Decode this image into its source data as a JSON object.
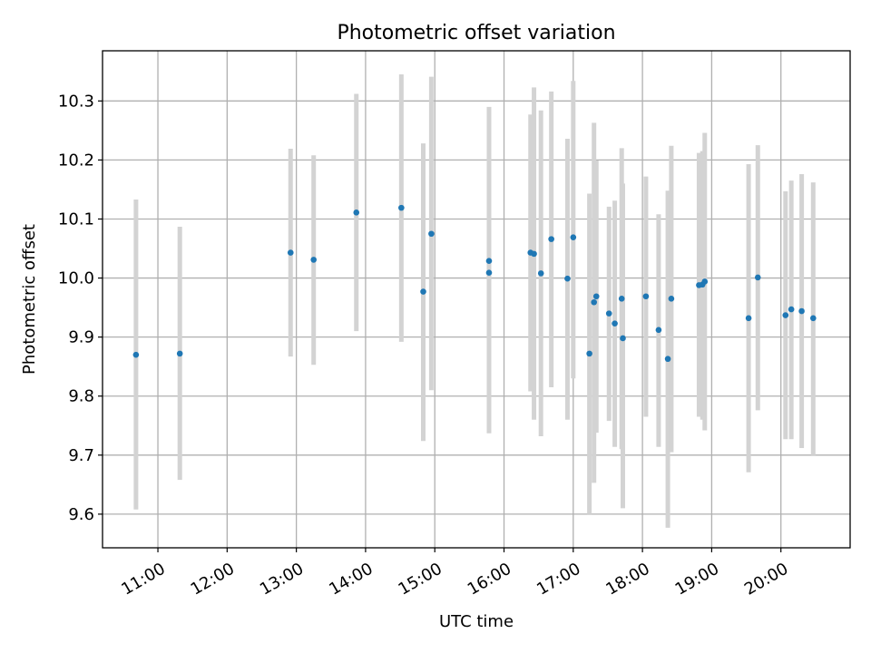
{
  "chart_data": {
    "type": "scatter",
    "title": "Photometric offset variation",
    "xlabel": "UTC time",
    "ylabel": "Photometric offset",
    "x_unit": "UTC time (HH:MM)",
    "xlim": [
      "10:12",
      "21:00"
    ],
    "ylim": [
      9.543,
      10.385
    ],
    "xticks": [
      "11:00",
      "12:00",
      "13:00",
      "14:00",
      "15:00",
      "16:00",
      "17:00",
      "18:00",
      "19:00",
      "20:00"
    ],
    "yticks": [
      9.6,
      9.7,
      9.8,
      9.9,
      10.0,
      10.1,
      10.2,
      10.3
    ],
    "grid": true,
    "marker_color": "#1f77b4",
    "errorbar_color": "#d3d3d3",
    "points": [
      {
        "x": "10:41",
        "y": 9.87,
        "lo": 9.608,
        "hi": 10.133
      },
      {
        "x": "11:19",
        "y": 9.872,
        "lo": 9.658,
        "hi": 10.087
      },
      {
        "x": "12:55",
        "y": 10.043,
        "lo": 9.867,
        "hi": 10.219
      },
      {
        "x": "13:15",
        "y": 10.031,
        "lo": 9.853,
        "hi": 10.208
      },
      {
        "x": "13:52",
        "y": 10.111,
        "lo": 9.91,
        "hi": 10.312
      },
      {
        "x": "14:31",
        "y": 10.119,
        "lo": 9.892,
        "hi": 10.345
      },
      {
        "x": "14:50",
        "y": 9.977,
        "lo": 9.724,
        "hi": 10.228
      },
      {
        "x": "14:57",
        "y": 10.075,
        "lo": 9.81,
        "hi": 10.341
      },
      {
        "x": "15:47",
        "y": 10.029,
        "lo": 9.767,
        "hi": 10.29
      },
      {
        "x": "15:47",
        "y": 10.009,
        "lo": 9.737,
        "hi": 10.28
      },
      {
        "x": "16:23",
        "y": 10.043,
        "lo": 9.808,
        "hi": 10.277
      },
      {
        "x": "16:26",
        "y": 10.041,
        "lo": 9.76,
        "hi": 10.323
      },
      {
        "x": "16:32",
        "y": 10.008,
        "lo": 9.732,
        "hi": 10.284
      },
      {
        "x": "16:41",
        "y": 10.066,
        "lo": 9.815,
        "hi": 10.316
      },
      {
        "x": "16:55",
        "y": 9.999,
        "lo": 9.76,
        "hi": 10.236
      },
      {
        "x": "17:00",
        "y": 10.069,
        "lo": 9.83,
        "hi": 10.334
      },
      {
        "x": "17:14",
        "y": 9.872,
        "lo": 9.6,
        "hi": 10.143
      },
      {
        "x": "17:18",
        "y": 9.959,
        "lo": 9.653,
        "hi": 10.263
      },
      {
        "x": "17:20",
        "y": 9.969,
        "lo": 9.738,
        "hi": 10.199
      },
      {
        "x": "17:31",
        "y": 9.94,
        "lo": 9.758,
        "hi": 10.121
      },
      {
        "x": "17:36",
        "y": 9.923,
        "lo": 9.714,
        "hi": 10.131
      },
      {
        "x": "17:42",
        "y": 9.965,
        "lo": 9.71,
        "hi": 10.22
      },
      {
        "x": "17:43",
        "y": 9.898,
        "lo": 9.61,
        "hi": 10.16
      },
      {
        "x": "18:03",
        "y": 9.969,
        "lo": 9.765,
        "hi": 10.172
      },
      {
        "x": "18:14",
        "y": 9.912,
        "lo": 9.714,
        "hi": 10.108
      },
      {
        "x": "18:22",
        "y": 9.863,
        "lo": 9.577,
        "hi": 10.148
      },
      {
        "x": "18:25",
        "y": 9.965,
        "lo": 9.705,
        "hi": 10.224
      },
      {
        "x": "18:49",
        "y": 9.988,
        "lo": 9.765,
        "hi": 10.212
      },
      {
        "x": "18:52",
        "y": 9.989,
        "lo": 9.76,
        "hi": 10.215
      },
      {
        "x": "18:54",
        "y": 9.994,
        "lo": 9.742,
        "hi": 10.246
      },
      {
        "x": "19:32",
        "y": 9.932,
        "lo": 9.671,
        "hi": 10.193
      },
      {
        "x": "19:40",
        "y": 10.001,
        "lo": 9.776,
        "hi": 10.225
      },
      {
        "x": "20:04",
        "y": 9.937,
        "lo": 9.727,
        "hi": 10.147
      },
      {
        "x": "20:09",
        "y": 9.947,
        "lo": 9.727,
        "hi": 10.165
      },
      {
        "x": "20:18",
        "y": 9.944,
        "lo": 9.712,
        "hi": 10.176
      },
      {
        "x": "20:28",
        "y": 9.932,
        "lo": 9.7,
        "hi": 10.162
      }
    ]
  }
}
